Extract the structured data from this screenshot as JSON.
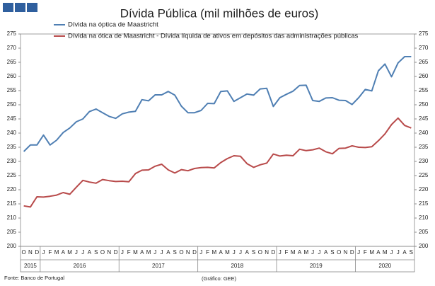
{
  "chart_data": {
    "type": "line",
    "title": "Dívida Pública (mil milhões de euros)",
    "categories": [
      "O",
      "N",
      "D",
      "J",
      "F",
      "M",
      "A",
      "M",
      "J",
      "J",
      "A",
      "S",
      "O",
      "N",
      "D",
      "J",
      "F",
      "M",
      "A",
      "M",
      "J",
      "J",
      "A",
      "S",
      "O",
      "N",
      "D",
      "J",
      "F",
      "M",
      "A",
      "M",
      "J",
      "J",
      "A",
      "S",
      "O",
      "N",
      "D",
      "J",
      "F",
      "M",
      "A",
      "M",
      "J",
      "J",
      "A",
      "S",
      "O",
      "N",
      "D",
      "J",
      "F",
      "M",
      "A",
      "M",
      "J",
      "J",
      "A",
      "S"
    ],
    "x_groups": [
      "2015",
      "2016",
      "2017",
      "2018",
      "2019",
      "2020"
    ],
    "series": [
      {
        "name": "Dívida na óptica de Maastricht",
        "color": "#4f7fb3",
        "values": [
          233.5,
          235.8,
          235.8,
          239.3,
          235.8,
          237.5,
          240.2,
          241.8,
          244.0,
          245.0,
          247.6,
          248.5,
          247.2,
          245.9,
          245.2,
          246.8,
          247.4,
          247.7,
          251.8,
          251.4,
          253.5,
          253.5,
          254.7,
          253.4,
          249.5,
          247.2,
          247.2,
          248.0,
          250.5,
          250.4,
          254.7,
          254.9,
          251.2,
          252.5,
          253.8,
          253.4,
          255.6,
          255.8,
          249.4,
          252.5,
          253.7,
          254.8,
          256.8,
          256.9,
          251.5,
          251.2,
          252.4,
          252.5,
          251.6,
          251.5,
          250.1,
          252.5,
          255.4,
          254.9,
          262.0,
          264.4,
          259.9,
          264.8,
          267.0,
          267.0
        ]
      },
      {
        "name": "Dívida na ótica de Maastricht - Dívida líquida de ativos em depósitos das administrações públicas",
        "color": "#b84a4a",
        "values": [
          214.3,
          213.9,
          217.5,
          217.4,
          217.7,
          218.1,
          219.0,
          218.4,
          220.9,
          223.3,
          222.7,
          222.3,
          223.6,
          223.2,
          222.9,
          223.0,
          222.8,
          225.7,
          226.9,
          227.0,
          228.3,
          229.0,
          227.0,
          225.9,
          227.1,
          226.7,
          227.5,
          227.8,
          227.9,
          227.7,
          229.6,
          231.0,
          232.0,
          231.8,
          229.2,
          227.9,
          228.8,
          229.4,
          232.6,
          231.9,
          232.2,
          232.0,
          234.3,
          233.8,
          234.1,
          234.7,
          233.4,
          232.7,
          234.6,
          234.7,
          235.5,
          235.0,
          234.9,
          235.2,
          237.3,
          239.7,
          243.0,
          245.3,
          242.7,
          241.8
        ]
      }
    ],
    "ylim": [
      200,
      275
    ],
    "yticks": [
      200,
      205,
      210,
      215,
      220,
      225,
      230,
      235,
      240,
      245,
      250,
      255,
      260,
      265,
      270,
      275
    ],
    "grid": false,
    "legend": "top",
    "source": "Fonte: Banco de Portugal",
    "credit": "(Gráfico: GEE)"
  }
}
